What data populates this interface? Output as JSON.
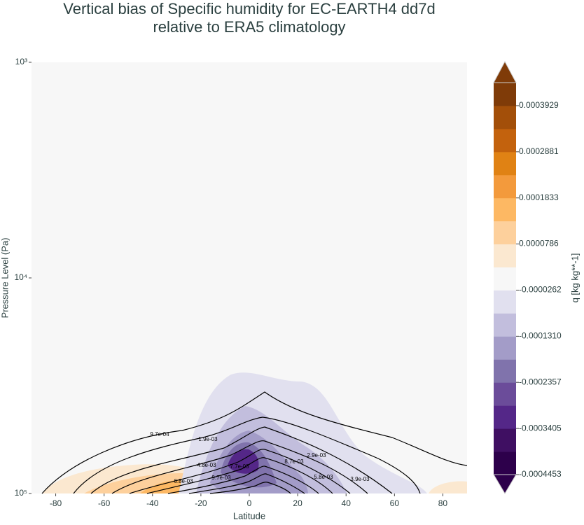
{
  "chart_data": {
    "type": "contour",
    "title": [
      "Vertical bias of Specific humidity for EC-EARTH4 dd7d",
      "relative to ERA5 climatology"
    ],
    "x_label": "Latitude",
    "y_label": "Pressure Level (Pa)",
    "xlim": [
      -90,
      90
    ],
    "xticks": [
      -80,
      -60,
      -40,
      -20,
      0,
      20,
      40,
      60,
      80
    ],
    "ylim": [
      1000,
      100000
    ],
    "y_scale": "log",
    "y_inverted": true,
    "yticks": [
      {
        "value": 1000,
        "label": "10³"
      },
      {
        "value": 10000,
        "label": "10⁴"
      },
      {
        "value": 100000,
        "label": "10⁵"
      }
    ],
    "colorbar": {
      "label": "q [kg kg**-1]",
      "lim": [
        -0.0004453,
        0.0004453
      ],
      "colors": [
        "#2d004b",
        "#3f0f62",
        "#542788",
        "#6b4c9a",
        "#8073ac",
        "#a39cc8",
        "#c2bedd",
        "#e1e0ef",
        "#f7f7f7",
        "#fbe8d0",
        "#fdd09c",
        "#fdb863",
        "#f39a3c",
        "#e08214",
        "#c3620d",
        "#a34f09",
        "#7f3b08"
      ],
      "ticks": [
        -0.0004453,
        -0.0003405,
        -0.0002357,
        {
          "value": -0.000131,
          "label": "-0.0001310"
        },
        -2.62e-05,
        7.86e-05,
        0.0001833,
        0.0002881,
        0.0003929
      ]
    },
    "contour_labels": [
      "9.7e-04",
      "1.9e-03",
      "2.9e-03",
      "3.9e-03",
      "4.8e-03",
      "5.8e-03",
      "6.8e-03",
      "7.7e-03",
      "8.7e-03",
      "9.7e-03"
    ]
  }
}
